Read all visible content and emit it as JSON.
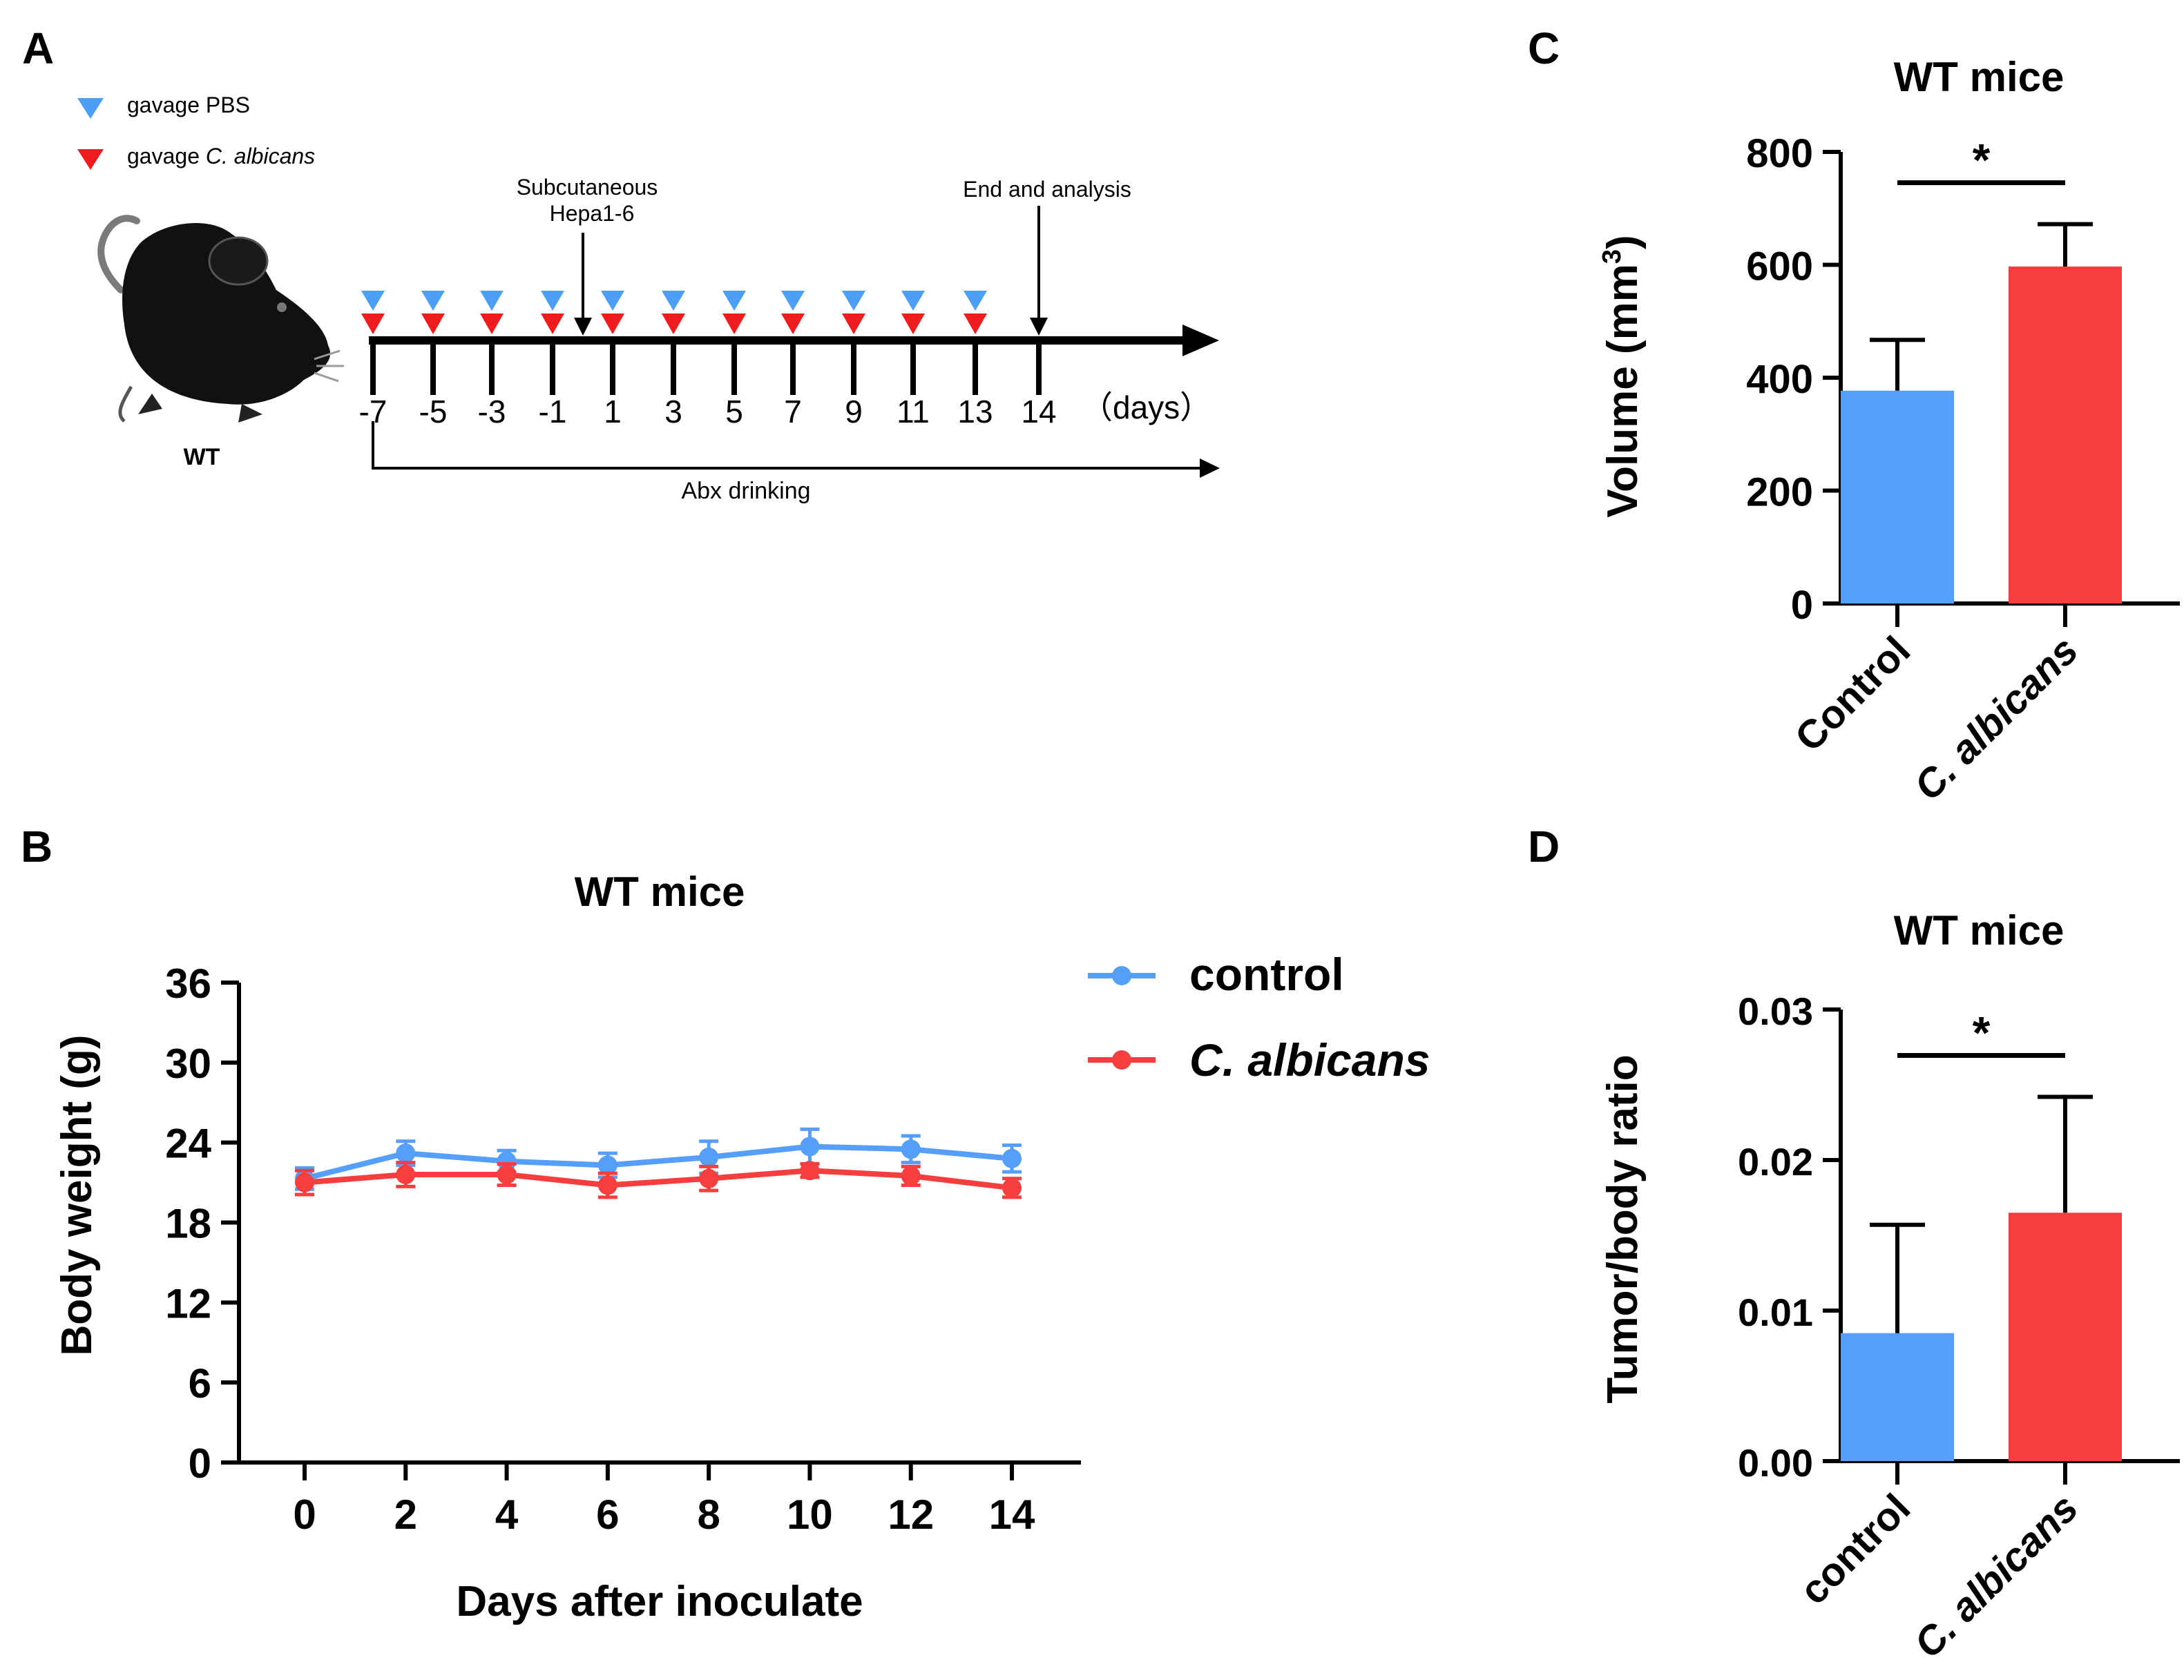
{
  "panels": {
    "a": "A",
    "b": "B",
    "c": "C",
    "d": "D"
  },
  "colors": {
    "control": "#559ef9",
    "candida": "#f63e3e",
    "blue_marker": "#4d9ef5",
    "red_marker": "#ee1c1c"
  },
  "timeline": {
    "legend_pbs": "gavage PBS",
    "legend_ca_prefix": "gavage ",
    "legend_ca_species": "C. albicans",
    "mouse_label": "WT",
    "subcut_line1": "Subcutaneous",
    "subcut_line2": "Hepa1-6",
    "end_label": "End and analysis",
    "days": [
      "-7",
      "-5",
      "-3",
      "-1",
      "1",
      "3",
      "5",
      "7",
      "9",
      "11",
      "13",
      "14"
    ],
    "days_unit": "（days）",
    "abx_label": "Abx drinking"
  },
  "chart_data": [
    {
      "id": "B",
      "type": "line",
      "title": "WT mice",
      "xlabel": "Days after inoculate",
      "ylabel": "Body weight (g)",
      "x": [
        0,
        2,
        4,
        6,
        8,
        10,
        12,
        14
      ],
      "xticks": [
        "0",
        "2",
        "4",
        "6",
        "8",
        "10",
        "12",
        "14"
      ],
      "yticks": [
        "0",
        "6",
        "12",
        "18",
        "24",
        "30",
        "36"
      ],
      "ylim": [
        0,
        36
      ],
      "legend_position": "top-right",
      "series": [
        {
          "name": "control",
          "values": [
            21.3,
            23.2,
            22.6,
            22.3,
            22.9,
            23.7,
            23.5,
            22.8
          ],
          "error": [
            0.8,
            0.9,
            0.8,
            0.9,
            1.2,
            1.3,
            1.0,
            1.0
          ]
        },
        {
          "name": "C. albicans",
          "values": [
            21.0,
            21.6,
            21.6,
            20.8,
            21.3,
            21.9,
            21.5,
            20.6
          ],
          "error": [
            0.9,
            0.9,
            0.8,
            0.9,
            0.9,
            0.5,
            0.7,
            0.7
          ]
        }
      ]
    },
    {
      "id": "C",
      "type": "bar",
      "title": "WT mice",
      "ylabel_main": "Volume (mm",
      "ylabel_sup": "3",
      "ylabel_close": ")",
      "categories": [
        "Control",
        "C. albicans"
      ],
      "values": [
        377,
        597
      ],
      "error": [
        90,
        75
      ],
      "yticks": [
        "0",
        "200",
        "400",
        "600",
        "800"
      ],
      "ylim": [
        0,
        800
      ],
      "significance": "*"
    },
    {
      "id": "D",
      "type": "bar",
      "title": "WT mice",
      "ylabel": "Tumor/body ratio",
      "categories": [
        "control",
        "C. albicans"
      ],
      "values": [
        0.0085,
        0.0165
      ],
      "error": [
        0.0072,
        0.0077
      ],
      "yticks": [
        "0.00",
        "0.01",
        "0.02",
        "0.03"
      ],
      "ylim": [
        0,
        0.03
      ],
      "significance": "*"
    }
  ]
}
